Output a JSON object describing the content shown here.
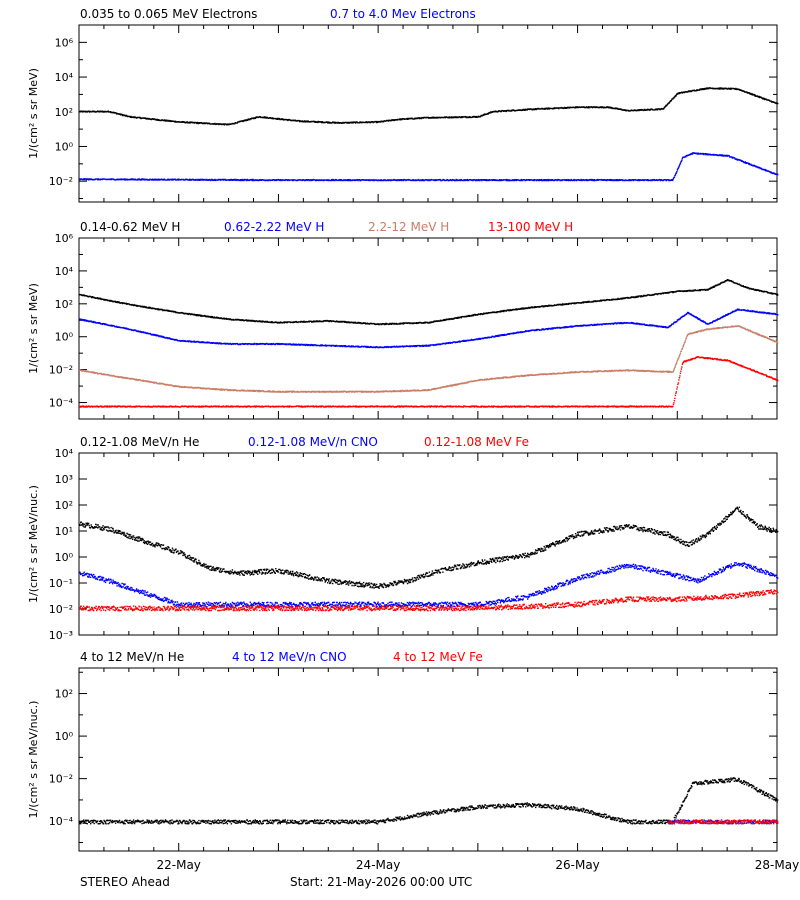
{
  "footer": {
    "spacecraft": "STEREO Ahead",
    "start": "Start: 21-May-2026 00:00 UTC"
  },
  "x_ticks": [
    "22-May",
    "24-May",
    "26-May",
    "28-May"
  ],
  "chart_data": [
    {
      "type": "scatter",
      "ylabel": "1/(cm² s sr MeV)",
      "yscale": "log",
      "ylim_exp": [
        -3.2,
        7
      ],
      "ytick_exps": [
        -2,
        0,
        2,
        4,
        6
      ],
      "xlim_days": [
        0,
        7
      ],
      "series": [
        {
          "name": "0.035 to 0.065 MeV Electrons",
          "color": "#000000",
          "points": [
            [
              0,
              2.05
            ],
            [
              0.3,
              2.05
            ],
            [
              0.5,
              1.75
            ],
            [
              1,
              1.45
            ],
            [
              1.5,
              1.3
            ],
            [
              1.6,
              1.45
            ],
            [
              1.8,
              1.75
            ],
            [
              2.2,
              1.5
            ],
            [
              2.6,
              1.4
            ],
            [
              3,
              1.45
            ],
            [
              3.2,
              1.6
            ],
            [
              3.5,
              1.7
            ],
            [
              4,
              1.75
            ],
            [
              4.15,
              2.05
            ],
            [
              4.6,
              2.2
            ],
            [
              5,
              2.3
            ],
            [
              5.3,
              2.3
            ],
            [
              5.5,
              2.1
            ],
            [
              5.85,
              2.2
            ],
            [
              6,
              3.1
            ],
            [
              6.3,
              3.4
            ],
            [
              6.6,
              3.35
            ],
            [
              7,
              2.5
            ]
          ]
        },
        {
          "name": "0.7 to 4.0 Mev Electrons",
          "color": "#0000ff",
          "points": [
            [
              0,
              -1.85
            ],
            [
              2,
              -1.9
            ],
            [
              4,
              -1.9
            ],
            [
              5.95,
              -1.9
            ],
            [
              6.05,
              -0.6
            ],
            [
              6.15,
              -0.35
            ],
            [
              6.5,
              -0.5
            ],
            [
              7,
              -1.6
            ]
          ]
        }
      ]
    },
    {
      "type": "scatter",
      "ylabel": "1/(cm² s sr MeV)",
      "yscale": "log",
      "ylim_exp": [
        -5,
        6
      ],
      "ytick_exps": [
        -4,
        -2,
        0,
        2,
        4,
        6
      ],
      "xlim_days": [
        0,
        7
      ],
      "series": [
        {
          "name": "0.14-0.62 MeV H",
          "color": "#000000",
          "points": [
            [
              0,
              2.6
            ],
            [
              0.5,
              2
            ],
            [
              1,
              1.5
            ],
            [
              1.5,
              1.1
            ],
            [
              2,
              0.9
            ],
            [
              2.5,
              1
            ],
            [
              3,
              0.8
            ],
            [
              3.5,
              0.9
            ],
            [
              4,
              1.4
            ],
            [
              4.5,
              1.8
            ],
            [
              5,
              2.1
            ],
            [
              5.5,
              2.4
            ],
            [
              6,
              2.8
            ],
            [
              6.3,
              2.9
            ],
            [
              6.5,
              3.5
            ],
            [
              6.7,
              3
            ],
            [
              7,
              2.6
            ]
          ]
        },
        {
          "name": "0.62-2.22 MeV H",
          "color": "#0000ff",
          "points": [
            [
              0,
              1.1
            ],
            [
              0.5,
              0.5
            ],
            [
              1,
              -0.2
            ],
            [
              1.5,
              -0.4
            ],
            [
              2,
              -0.4
            ],
            [
              2.5,
              -0.5
            ],
            [
              3,
              -0.6
            ],
            [
              3.5,
              -0.5
            ],
            [
              4,
              -0.1
            ],
            [
              4.5,
              0.4
            ],
            [
              5,
              0.7
            ],
            [
              5.5,
              0.9
            ],
            [
              5.9,
              0.6
            ],
            [
              6.1,
              1.5
            ],
            [
              6.3,
              0.8
            ],
            [
              6.6,
              1.7
            ],
            [
              7,
              1.4
            ]
          ]
        },
        {
          "name": "2.2-12 MeV H",
          "color": "#c87d64",
          "points": [
            [
              0,
              -2
            ],
            [
              0.5,
              -2.5
            ],
            [
              1,
              -3
            ],
            [
              1.5,
              -3.2
            ],
            [
              2,
              -3.3
            ],
            [
              2.5,
              -3.3
            ],
            [
              3,
              -3.3
            ],
            [
              3.5,
              -3.2
            ],
            [
              4,
              -2.6
            ],
            [
              4.5,
              -2.3
            ],
            [
              5,
              -2.1
            ],
            [
              5.5,
              -2
            ],
            [
              5.95,
              -2.1
            ],
            [
              6.1,
              0.2
            ],
            [
              6.3,
              0.5
            ],
            [
              6.6,
              0.7
            ],
            [
              7,
              -0.3
            ]
          ]
        },
        {
          "name": "13-100 MeV H",
          "color": "#ff0000",
          "points": [
            [
              0,
              -4.2
            ],
            [
              1,
              -4.2
            ],
            [
              2,
              -4.2
            ],
            [
              3,
              -4.2
            ],
            [
              4,
              -4.2
            ],
            [
              5,
              -4.2
            ],
            [
              5.95,
              -4.2
            ],
            [
              6.05,
              -1.5
            ],
            [
              6.2,
              -1.2
            ],
            [
              6.5,
              -1.4
            ],
            [
              7,
              -2.6
            ]
          ]
        }
      ]
    },
    {
      "type": "scatter",
      "ylabel": "1/(cm² s sr MeV/nuc.)",
      "yscale": "log",
      "ylim_exp": [
        -3,
        4
      ],
      "ytick_exps": [
        -3,
        -2,
        -1,
        0,
        1,
        2,
        3,
        4
      ],
      "xlim_days": [
        0,
        7
      ],
      "series": [
        {
          "name": "0.12-1.08 MeV/n He",
          "color": "#000000",
          "points": [
            [
              0,
              1.3
            ],
            [
              0.3,
              1.1
            ],
            [
              0.6,
              0.7
            ],
            [
              1,
              0.2
            ],
            [
              1.3,
              -0.4
            ],
            [
              1.6,
              -0.6
            ],
            [
              2,
              -0.5
            ],
            [
              2.5,
              -0.9
            ],
            [
              3,
              -1.1
            ],
            [
              3.3,
              -0.9
            ],
            [
              3.6,
              -0.5
            ],
            [
              4,
              -0.2
            ],
            [
              4.5,
              0.1
            ],
            [
              5,
              0.9
            ],
            [
              5.5,
              1.2
            ],
            [
              5.9,
              0.9
            ],
            [
              6.1,
              0.5
            ],
            [
              6.3,
              0.9
            ],
            [
              6.6,
              1.9
            ],
            [
              6.8,
              1.2
            ],
            [
              7,
              1
            ]
          ]
        },
        {
          "name": "0.12-1.08 MeV/n CNO",
          "color": "#0000ff",
          "points": [
            [
              0,
              -0.6
            ],
            [
              0.3,
              -0.9
            ],
            [
              0.6,
              -1.3
            ],
            [
              1,
              -1.8
            ],
            [
              2,
              -1.8
            ],
            [
              3,
              -1.8
            ],
            [
              4,
              -1.8
            ],
            [
              4.5,
              -1.5
            ],
            [
              5,
              -0.8
            ],
            [
              5.5,
              -0.3
            ],
            [
              5.9,
              -0.6
            ],
            [
              6.2,
              -0.9
            ],
            [
              6.6,
              -0.2
            ],
            [
              7,
              -0.7
            ]
          ]
        },
        {
          "name": "0.12-1.08 MeV Fe",
          "color": "#ff0000",
          "points": [
            [
              0,
              -1.95
            ],
            [
              1,
              -1.95
            ],
            [
              2,
              -1.95
            ],
            [
              3,
              -1.95
            ],
            [
              4,
              -1.95
            ],
            [
              5,
              -1.8
            ],
            [
              5.5,
              -1.6
            ],
            [
              6,
              -1.6
            ],
            [
              6.5,
              -1.5
            ],
            [
              7,
              -1.3
            ]
          ]
        }
      ]
    },
    {
      "type": "scatter",
      "ylabel": "1/(cm² s sr MeV/nuc.)",
      "yscale": "log",
      "ylim_exp": [
        -5.4,
        3.2
      ],
      "ytick_exps": [
        -4,
        -2,
        0,
        2
      ],
      "xlim_days": [
        0,
        7
      ],
      "series": [
        {
          "name": "4 to 12 MeV/n He",
          "color": "#000000",
          "points": [
            [
              0,
              -4
            ],
            [
              1,
              -4
            ],
            [
              2,
              -4
            ],
            [
              3,
              -4
            ],
            [
              3.5,
              -3.6
            ],
            [
              4,
              -3.3
            ],
            [
              4.5,
              -3.2
            ],
            [
              5,
              -3.4
            ],
            [
              5.5,
              -4
            ],
            [
              5.95,
              -4
            ],
            [
              6.15,
              -2.2
            ],
            [
              6.6,
              -2
            ],
            [
              7,
              -3
            ]
          ]
        },
        {
          "name": "4 to 12 MeV/n CNO",
          "color": "#0000ff",
          "points": [
            [
              5.9,
              -4
            ],
            [
              6.5,
              -4
            ],
            [
              7,
              -4
            ]
          ]
        },
        {
          "name": "4 to 12 MeV Fe",
          "color": "#ff0000",
          "points": [
            [
              5.9,
              -4
            ],
            [
              6.5,
              -4
            ],
            [
              7,
              -4
            ]
          ]
        }
      ]
    }
  ]
}
